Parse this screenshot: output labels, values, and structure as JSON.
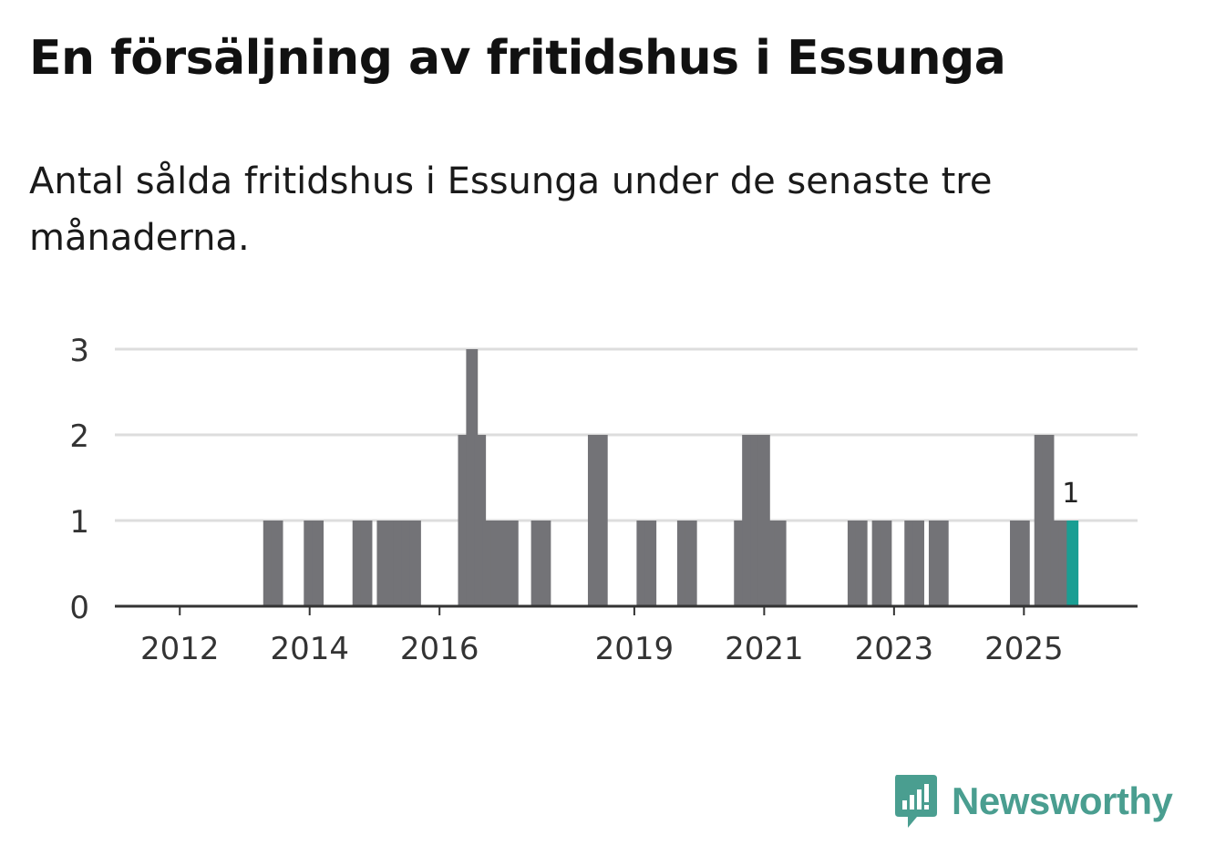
{
  "title": "En försäljning av fritidshus i Essunga",
  "subtitle": "Antal sålda fritidshus i Essunga under de senaste tre månaderna.",
  "brand": {
    "name": "Newsworthy",
    "color": "#4a9e90"
  },
  "colors": {
    "bar": "#737377",
    "highlight": "#1a9e93",
    "grid": "#dddddd",
    "axis": "#333333"
  },
  "chart_data": {
    "type": "bar",
    "title": "En försäljning av fritidshus i Essunga",
    "xlabel": "",
    "ylabel": "",
    "ylim": [
      0,
      3
    ],
    "yticks": [
      0,
      1,
      2,
      3
    ],
    "xlim": [
      2011.0,
      2026.75
    ],
    "xticks": [
      2012,
      2014,
      2016,
      2019,
      2021,
      2023,
      2025
    ],
    "grid": true,
    "bar_period": "quarter",
    "series": [
      {
        "name": "Antal sålda fritidshus",
        "data": [
          [
            2013.375,
            1
          ],
          [
            2013.5,
            1
          ],
          [
            2014.0,
            1
          ],
          [
            2014.125,
            1
          ],
          [
            2014.75,
            1
          ],
          [
            2014.875,
            1
          ],
          [
            2015.125,
            1
          ],
          [
            2015.25,
            1
          ],
          [
            2015.375,
            1
          ],
          [
            2015.5,
            1
          ],
          [
            2015.625,
            1
          ],
          [
            2016.375,
            2
          ],
          [
            2016.5,
            3
          ],
          [
            2016.625,
            2
          ],
          [
            2016.75,
            1
          ],
          [
            2016.875,
            1
          ],
          [
            2017.0,
            1
          ],
          [
            2017.125,
            1
          ],
          [
            2017.5,
            1
          ],
          [
            2017.625,
            1
          ],
          [
            2018.375,
            2
          ],
          [
            2018.5,
            2
          ],
          [
            2019.125,
            1
          ],
          [
            2019.25,
            1
          ],
          [
            2019.75,
            1
          ],
          [
            2019.875,
            1
          ],
          [
            2020.625,
            1
          ],
          [
            2020.75,
            2
          ],
          [
            2020.875,
            2
          ],
          [
            2021.0,
            2
          ],
          [
            2021.125,
            1
          ],
          [
            2021.25,
            1
          ],
          [
            2022.375,
            1
          ],
          [
            2022.5,
            1
          ],
          [
            2022.75,
            1
          ],
          [
            2022.875,
            1
          ],
          [
            2023.25,
            1
          ],
          [
            2023.375,
            1
          ],
          [
            2023.625,
            1
          ],
          [
            2023.75,
            1
          ],
          [
            2024.875,
            1
          ],
          [
            2025.0,
            1
          ],
          [
            2025.25,
            2
          ],
          [
            2025.375,
            2
          ],
          [
            2025.5,
            1
          ],
          [
            2025.625,
            1
          ]
        ]
      }
    ],
    "highlight": {
      "x": 2025.75,
      "value": 1,
      "label": "1"
    }
  }
}
